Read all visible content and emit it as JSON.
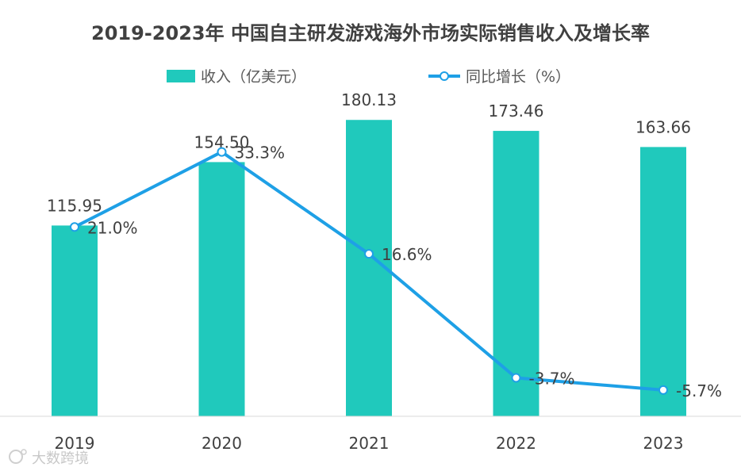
{
  "chart_data": {
    "type": "bar+line",
    "title": "2019-2023年 中国自主研发游戏海外市场实际销售收入及增长率",
    "categories": [
      "2019",
      "2020",
      "2021",
      "2022",
      "2023"
    ],
    "series": [
      {
        "name": "收入（亿美元）",
        "type": "bar",
        "values": [
          115.95,
          154.5,
          180.13,
          173.46,
          163.66
        ],
        "labels": [
          "115.95",
          "154.50",
          "180.13",
          "173.46",
          "163.66"
        ],
        "color": "#20C9BC"
      },
      {
        "name": "同比增长（%）",
        "type": "line",
        "values": [
          21.0,
          33.3,
          16.6,
          -3.7,
          -5.7
        ],
        "labels": [
          "21.0%",
          "33.3%",
          "16.6%",
          "-3.7%",
          "-5.7%"
        ],
        "color": "#1EA0E6"
      }
    ],
    "bar_axis_range": [
      0,
      200
    ],
    "line_axis_range": [
      -10,
      40
    ],
    "legend_position": "top-center",
    "grid": false
  },
  "watermark": "大数跨境"
}
